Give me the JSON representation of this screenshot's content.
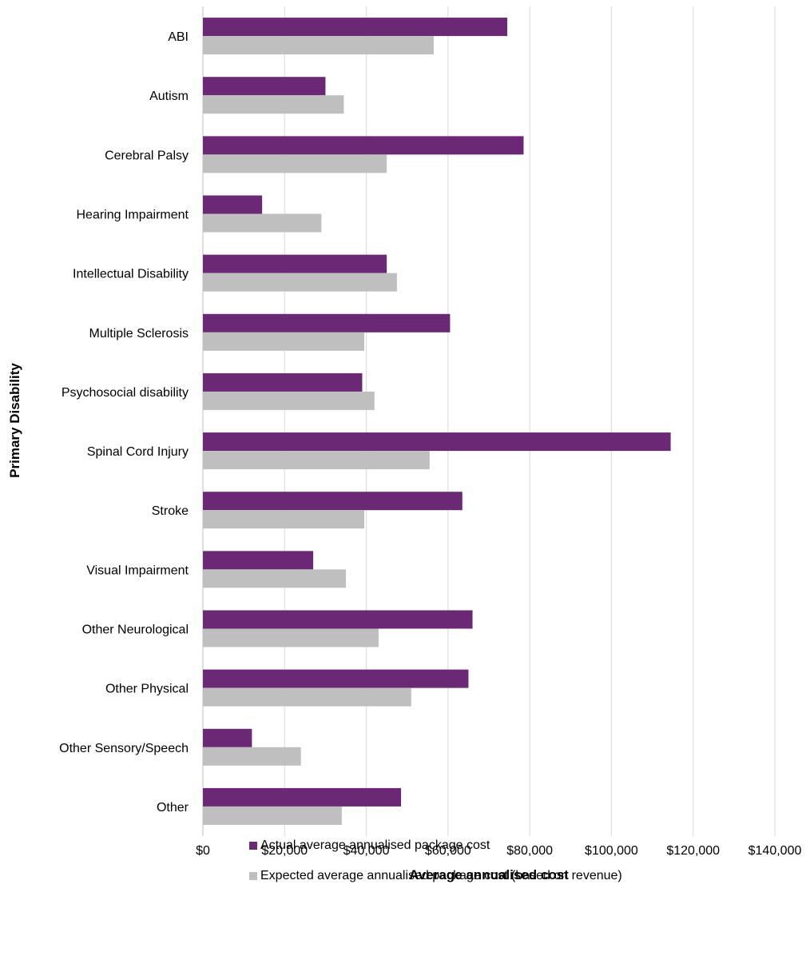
{
  "chart_data": {
    "type": "bar",
    "orientation": "horizontal",
    "xlabel": "Average annualised cost",
    "ylabel": "Primary Disability",
    "xlim": [
      0,
      140000
    ],
    "x_ticks": [
      "$0",
      "$20,000",
      "$40,000",
      "$60,000",
      "$80,000",
      "$100,000",
      "$120,000",
      "$140,000"
    ],
    "grid": "vertical",
    "legend_position": "bottom",
    "categories": [
      "ABI",
      "Autism",
      "Cerebral Palsy",
      "Hearing Impairment",
      "Intellectual Disability",
      "Multiple Sclerosis",
      "Psychosocial disability",
      "Spinal Cord Injury",
      "Stroke",
      "Visual Impairment",
      "Other Neurological",
      "Other Physical",
      "Other Sensory/Speech",
      "Other"
    ],
    "series": [
      {
        "name": "Actual average annualised package cost",
        "color": "#6B2875",
        "values": [
          74500,
          30000,
          78500,
          14500,
          45000,
          60500,
          39000,
          114500,
          63500,
          27000,
          66000,
          65000,
          12000,
          48500
        ]
      },
      {
        "name": "Expected average annualised package cost (based on revenue)",
        "color": "#BFBFBF",
        "values": [
          56500,
          34500,
          45000,
          29000,
          47500,
          39500,
          42000,
          55500,
          39500,
          35000,
          43000,
          51000,
          24000,
          34000
        ]
      }
    ]
  }
}
